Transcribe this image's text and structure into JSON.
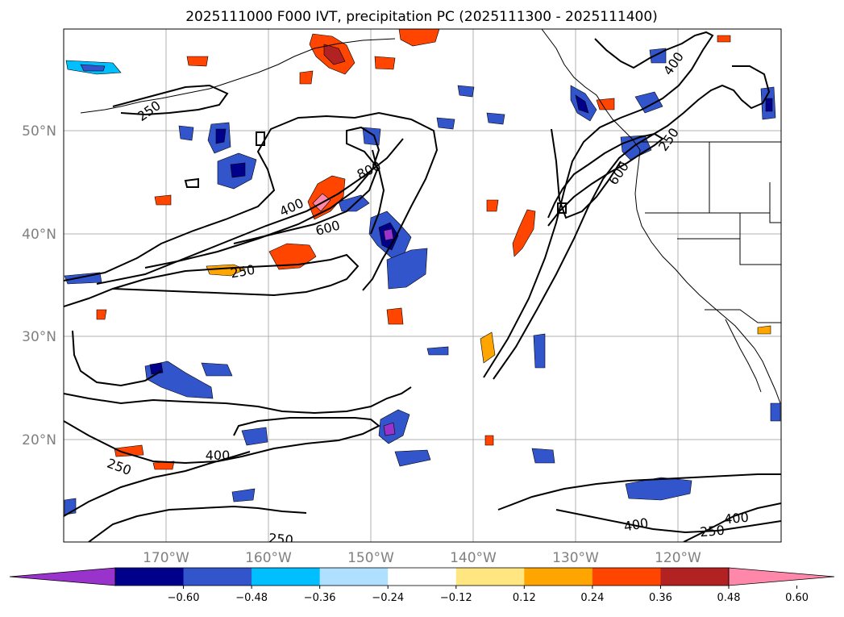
{
  "title": "2025111000 F000 IVT, precipitation PC (2025111300 - 2025111400)",
  "lat_labels": [
    "50°N",
    "40°N",
    "30°N",
    "20°N"
  ],
  "lon_labels": [
    "170°W",
    "160°W",
    "150°W",
    "140°W",
    "130°W",
    "120°W"
  ],
  "contour_labels": [
    "250",
    "400",
    "800",
    "400",
    "600",
    "250",
    "400",
    "250",
    "600",
    "250",
    "400",
    "250",
    "250",
    "400"
  ],
  "colorbar": {
    "ticks": [
      "−0.60",
      "−0.48",
      "−0.36",
      "−0.24",
      "−0.12",
      "0.12",
      "0.24",
      "0.36",
      "0.48",
      "0.60"
    ],
    "colors": [
      "#9933cc",
      "#00008b",
      "#3355cc",
      "#00bfff",
      "#b0e0ff",
      "#ffffff",
      "#ffe680",
      "#ffa500",
      "#ff4500",
      "#b22222",
      "#ff88aa"
    ]
  }
}
